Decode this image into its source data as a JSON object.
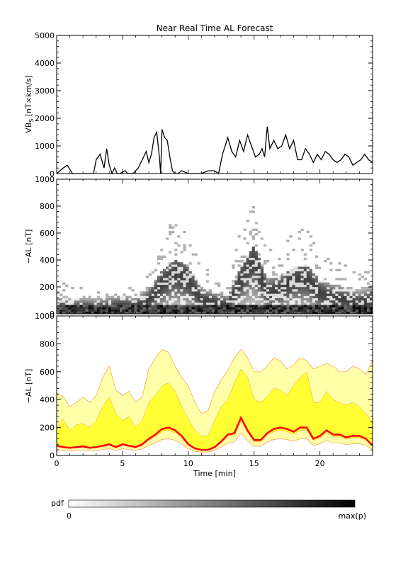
{
  "title": "Near Real Time AL Forecast",
  "panels": {
    "top": {
      "ylabel": "VB",
      "ylabel_sub": "S",
      "ylabel_rest": " [nT×km/s]",
      "ylim": [
        0,
        5000
      ],
      "yticks": [
        "0",
        "1000",
        "2000",
        "3000",
        "4000",
        "5000"
      ]
    },
    "middle": {
      "ylabel": "−AL [nT]",
      "ylim": [
        0,
        1000
      ],
      "yticks": [
        "0",
        "200",
        "400",
        "600",
        "800",
        "1000"
      ]
    },
    "bottom": {
      "ylabel": "−AL [nT]",
      "ylim": [
        0,
        1000
      ],
      "yticks": [
        "0",
        "200",
        "400",
        "600",
        "800",
        "1000"
      ],
      "xlabel": "Time [min]",
      "xticks": [
        "0",
        "5",
        "10",
        "15",
        "20"
      ]
    }
  },
  "colorbar": {
    "label": "pdf",
    "min_label": "0",
    "max_label": "max(p)"
  },
  "colors": {
    "line": "#000000",
    "forecast": "#ff0000",
    "band_inner": "#ffff33",
    "band_outer": "#ffffaa",
    "band_edge": "#f0a040"
  },
  "chart_data": [
    {
      "type": "line",
      "name": "VBs",
      "xlim": [
        0,
        24
      ],
      "ylim": [
        0,
        5000
      ],
      "x": [
        0,
        0.5,
        0.8,
        1.2,
        1.6,
        2.0,
        2.8,
        3.0,
        3.3,
        3.6,
        3.8,
        4.0,
        4.2,
        4.4,
        4.6,
        4.8,
        5.2,
        5.4,
        5.8,
        6.2,
        6.5,
        6.8,
        7.0,
        7.2,
        7.4,
        7.6,
        7.8,
        7.9,
        8.0,
        8.2,
        8.4,
        8.6,
        8.8,
        9.0,
        9.2,
        9.5,
        10.0,
        10.5,
        11.0,
        11.5,
        12.0,
        12.3,
        12.6,
        12.8,
        13.0,
        13.3,
        13.6,
        13.9,
        14.2,
        14.5,
        14.8,
        15.1,
        15.4,
        15.6,
        15.8,
        16.0,
        16.2,
        16.5,
        16.8,
        17.1,
        17.4,
        17.7,
        18.0,
        18.3,
        18.6,
        18.9,
        19.2,
        19.5,
        19.8,
        20.1,
        20.4,
        20.7,
        21.0,
        21.3,
        21.6,
        21.9,
        22.2,
        22.5,
        22.8,
        23.1,
        23.4,
        23.7,
        24.0
      ],
      "y": [
        0,
        200,
        300,
        0,
        0,
        0,
        0,
        500,
        700,
        200,
        900,
        300,
        0,
        200,
        0,
        0,
        100,
        0,
        0,
        200,
        500,
        800,
        400,
        700,
        1300,
        1500,
        600,
        0,
        1600,
        1300,
        1200,
        600,
        100,
        0,
        0,
        100,
        0,
        0,
        0,
        100,
        100,
        0,
        700,
        1000,
        1300,
        800,
        600,
        1200,
        800,
        1400,
        1000,
        600,
        700,
        900,
        600,
        1700,
        900,
        1200,
        900,
        1000,
        1400,
        900,
        1200,
        500,
        500,
        900,
        700,
        400,
        700,
        500,
        800,
        700,
        500,
        400,
        500,
        700,
        600,
        300,
        400,
        500,
        700,
        500,
        400
      ]
    },
    {
      "type": "heatmap",
      "name": "pdf of -AL",
      "xlim": [
        0,
        24
      ],
      "ylim": [
        0,
        1000
      ],
      "x": [
        0,
        1,
        2,
        3,
        4,
        5,
        6,
        7,
        8,
        9,
        10,
        11,
        12,
        13,
        14,
        15,
        16,
        17,
        18,
        19,
        20,
        21,
        22,
        23,
        24
      ],
      "ridge": [
        50,
        40,
        45,
        40,
        50,
        60,
        50,
        100,
        220,
        300,
        250,
        100,
        80,
        60,
        250,
        400,
        150,
        180,
        250,
        260,
        150,
        120,
        100,
        80,
        100
      ],
      "spread": [
        150,
        120,
        120,
        110,
        130,
        140,
        120,
        180,
        320,
        400,
        350,
        200,
        160,
        140,
        350,
        500,
        260,
        280,
        350,
        360,
        250,
        220,
        200,
        180,
        220
      ],
      "colorbar": {
        "min": "0",
        "max": "max(p)"
      }
    },
    {
      "type": "area",
      "name": "-AL forecast",
      "xlim": [
        0,
        24
      ],
      "ylim": [
        0,
        1000
      ],
      "x": [
        0,
        0.5,
        1,
        1.5,
        2,
        2.5,
        3,
        3.5,
        4,
        4.5,
        5,
        5.5,
        6,
        6.5,
        7,
        7.5,
        8,
        8.5,
        9,
        9.5,
        10,
        10.5,
        11,
        11.5,
        12,
        12.5,
        13,
        13.5,
        14,
        14.5,
        15,
        15.5,
        16,
        16.5,
        17,
        17.5,
        18,
        18.5,
        19,
        19.5,
        20,
        20.5,
        21,
        21.5,
        22,
        22.5,
        23,
        23.5,
        24
      ],
      "series": [
        {
          "name": "median",
          "values": [
            70,
            60,
            55,
            60,
            65,
            55,
            60,
            70,
            80,
            60,
            80,
            70,
            60,
            80,
            120,
            150,
            190,
            200,
            180,
            140,
            80,
            50,
            40,
            40,
            60,
            100,
            150,
            160,
            270,
            180,
            110,
            110,
            160,
            190,
            200,
            190,
            170,
            200,
            200,
            120,
            140,
            180,
            150,
            150,
            130,
            140,
            140,
            120,
            70
          ]
        },
        {
          "name": "inner_upper",
          "values": [
            200,
            260,
            180,
            220,
            230,
            200,
            250,
            350,
            420,
            300,
            250,
            280,
            200,
            250,
            380,
            430,
            500,
            520,
            460,
            350,
            260,
            180,
            140,
            140,
            250,
            350,
            400,
            520,
            620,
            560,
            400,
            380,
            420,
            480,
            470,
            430,
            500,
            560,
            600,
            380,
            380,
            460,
            400,
            380,
            360,
            380,
            350,
            300,
            230
          ]
        },
        {
          "name": "outer_upper",
          "values": [
            450,
            420,
            350,
            380,
            420,
            380,
            430,
            560,
            640,
            470,
            430,
            460,
            380,
            420,
            620,
            700,
            760,
            740,
            640,
            560,
            500,
            380,
            300,
            320,
            460,
            540,
            610,
            700,
            760,
            700,
            600,
            600,
            640,
            700,
            680,
            620,
            650,
            700,
            680,
            620,
            640,
            660,
            640,
            600,
            600,
            640,
            620,
            580,
            680
          ]
        }
      ]
    }
  ]
}
